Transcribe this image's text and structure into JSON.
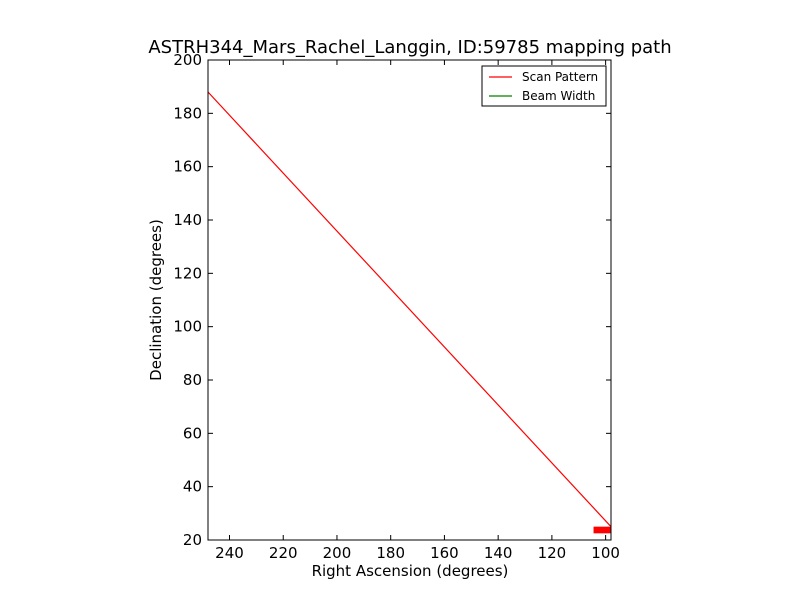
{
  "chart_data": {
    "type": "line",
    "title": "ASTRH344_Mars_Rachel_Langgin, ID:59785 mapping path",
    "xlabel": "Right Ascension (degrees)",
    "ylabel": "Declination (degrees)",
    "xlim": [
      248,
      98
    ],
    "ylim": [
      20,
      200
    ],
    "x_inverted": true,
    "xticks": [
      240,
      220,
      200,
      180,
      160,
      140,
      120,
      100
    ],
    "yticks": [
      20,
      40,
      60,
      80,
      100,
      120,
      140,
      160,
      180,
      200
    ],
    "legend_position": "top-right",
    "grid": false,
    "series": [
      {
        "name": "Scan Pattern",
        "color": "#ff0000",
        "kind": "line",
        "x": [
          248,
          98
        ],
        "y": [
          188,
          25
        ]
      },
      {
        "name": "Beam Width",
        "color": "#008000",
        "kind": "line",
        "x": [],
        "y": []
      }
    ],
    "markers": [
      {
        "color": "#ff0000",
        "shape": "rect",
        "x_range": [
          104.5,
          98
        ],
        "y_range": [
          22.5,
          25
        ]
      }
    ]
  }
}
